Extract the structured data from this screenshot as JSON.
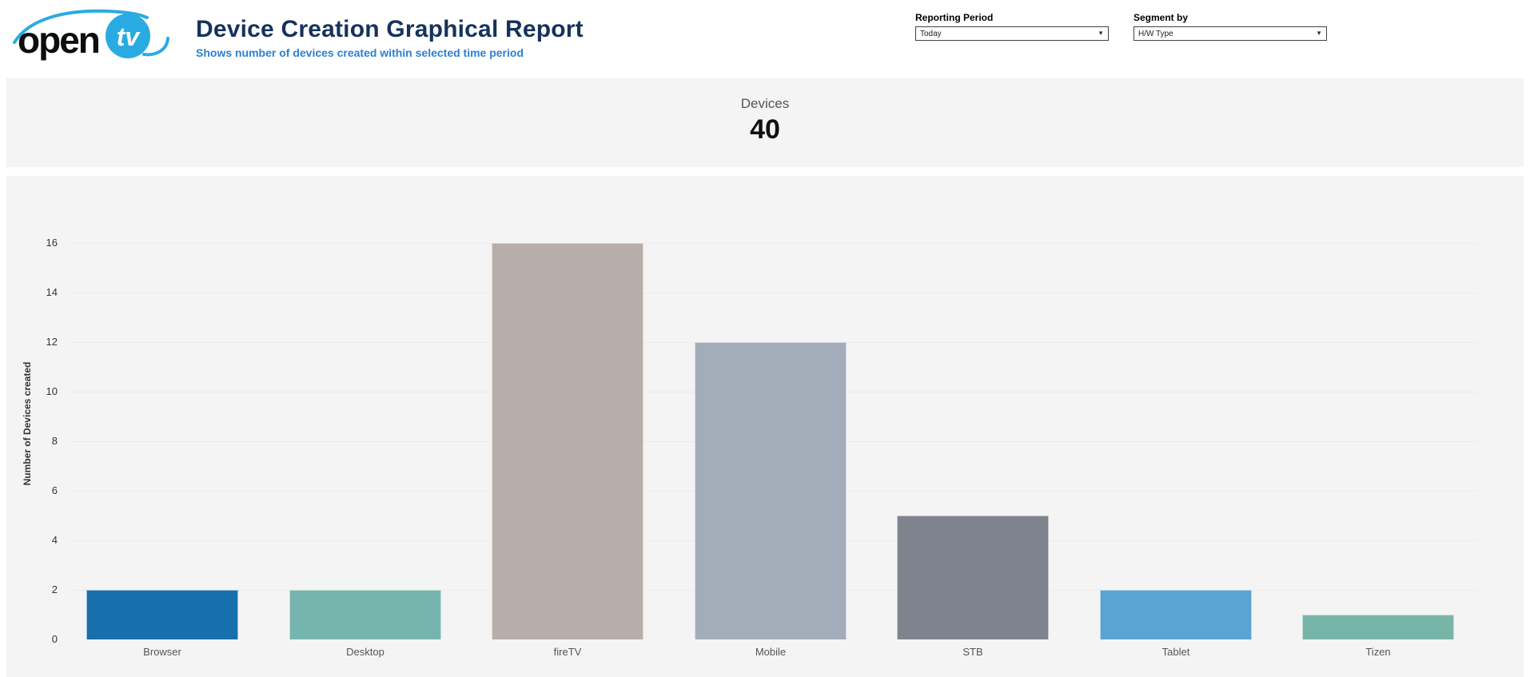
{
  "header": {
    "logo": {
      "text_open": "open",
      "text_tv": "tv",
      "brand_color": "#29abe2"
    },
    "title": "Device Creation Graphical Report",
    "subtitle": "Shows number of devices created within selected time period",
    "reporting_period": {
      "label": "Reporting Period",
      "value": "Today"
    },
    "segment_by": {
      "label": "Segment by",
      "value": "H/W Type"
    }
  },
  "kpi": {
    "label": "Devices",
    "value": "40"
  },
  "chart_data": {
    "type": "bar",
    "title": "Devices",
    "categories": [
      "Browser",
      "Desktop",
      "fireTV",
      "Mobile",
      "STB",
      "Tablet",
      "Tizen"
    ],
    "values": [
      2,
      2,
      16,
      12,
      5,
      2,
      1
    ],
    "total": 40,
    "bar_colors": [
      "#1770ab",
      "#76b5ae",
      "#b7aeaa",
      "#a3adba",
      "#7e838d",
      "#5ba3d2",
      "#76b5a8"
    ],
    "xlabel": "",
    "ylabel": "Number of Devices created",
    "ylim": [
      0,
      16
    ],
    "yticks": [
      0,
      2,
      4,
      6,
      8,
      10,
      12,
      14,
      16
    ],
    "grid": "horizontal-faint",
    "legend": "none"
  },
  "colors": {
    "band_background": "#f4f4f4",
    "title_text": "#16325c",
    "subtitle_text": "#2d7fd3",
    "tick_text": "#333333",
    "category_text": "#555555"
  }
}
